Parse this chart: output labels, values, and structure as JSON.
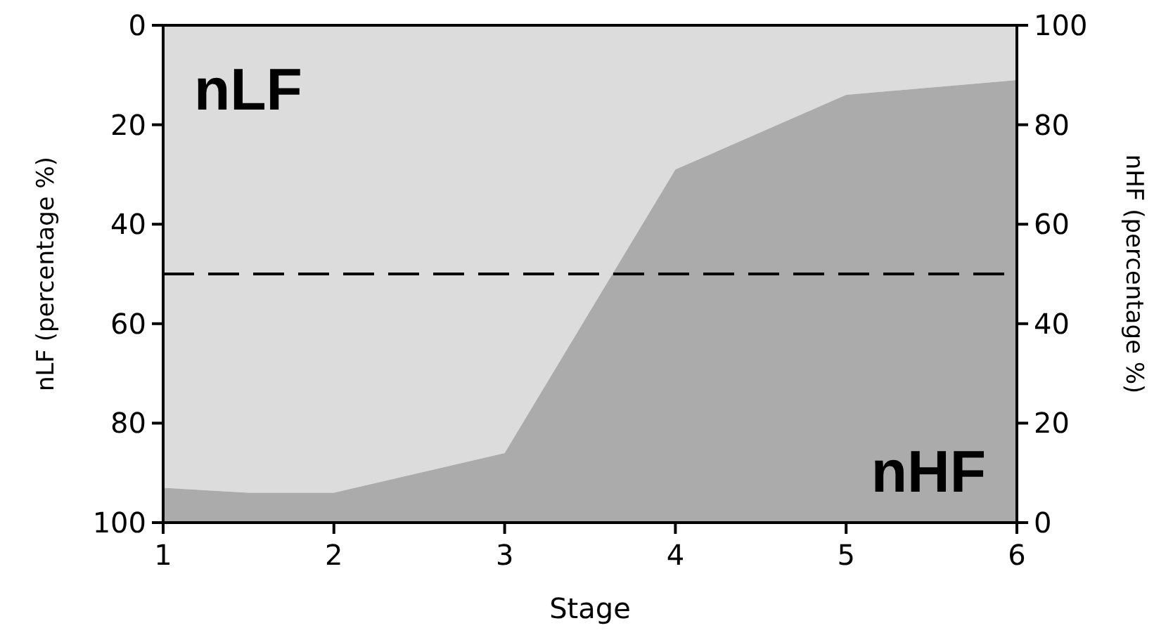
{
  "chart_data": {
    "type": "area",
    "xlabel": "Stage",
    "ylabel": "nLF (percentage %)",
    "y2label": "nHF (percentage %)",
    "x": [
      1,
      1.5,
      2,
      3,
      4,
      5,
      6
    ],
    "series": [
      {
        "name": "nLF",
        "color": "#dcdcdc",
        "values": [
          93,
          94,
          94,
          86,
          29,
          14,
          11
        ]
      },
      {
        "name": "nHF",
        "color": "#ababab",
        "axis": "y2",
        "values": [
          7,
          6,
          6,
          14,
          71,
          86,
          89
        ]
      }
    ],
    "xlim": [
      1,
      6
    ],
    "xticks": [
      1,
      2,
      3,
      4,
      5,
      6
    ],
    "ylim": [
      100,
      0
    ],
    "yticks": [
      0,
      20,
      40,
      60,
      80,
      100
    ],
    "y2lim": [
      0,
      100
    ],
    "y2ticks": [
      0,
      20,
      40,
      60,
      80,
      100
    ],
    "ref_lines": [
      {
        "axis": "y",
        "value": 50,
        "line_style": "dashed",
        "color": "#000000"
      }
    ],
    "grid": false
  }
}
